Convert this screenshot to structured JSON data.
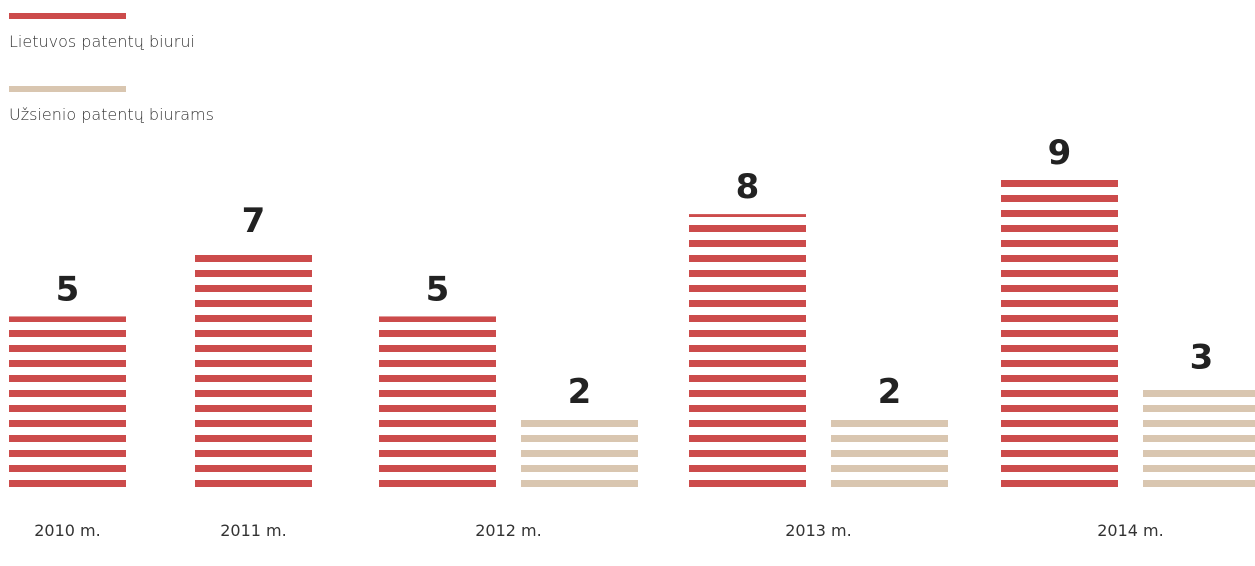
{
  "chart_data": {
    "type": "bar",
    "categories": [
      "2010 m.",
      "2011 m.",
      "2012 m.",
      "2013 m.",
      "2014 m."
    ],
    "series": [
      {
        "name": "Lietuvos patentų biurui",
        "color": "#cc4b4b",
        "values": [
          5,
          7,
          5,
          8,
          9
        ]
      },
      {
        "name": "Užsienio patentų biurams",
        "color": "#d9c6b0",
        "values": [
          null,
          null,
          2,
          2,
          3
        ]
      }
    ],
    "ylim": [
      0,
      9
    ]
  }
}
